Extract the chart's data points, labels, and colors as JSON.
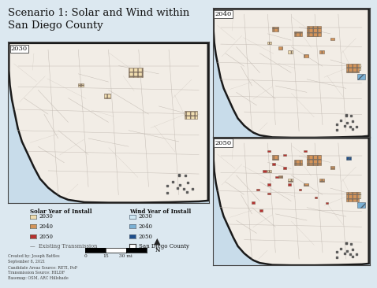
{
  "title": "Scenario 1: Solar and Wind within\nSan Diego County",
  "title_fontsize": 9.5,
  "background_color": "#dce8f0",
  "map_bg": "#c8dcea",
  "land_color": "#f2ede6",
  "land_color_light": "#e8e4dc",
  "county_border": "#1a1a1a",
  "road_color": "#c0b8a8",
  "map_labels": [
    "2030",
    "2040",
    "2050"
  ],
  "legend": {
    "solar_title": "Solar Year of Install",
    "wind_title": "Wind Year of Install",
    "solar_items": [
      {
        "label": "2030",
        "color": "#f0ddb0"
      },
      {
        "label": "2040",
        "color": "#d4945a"
      },
      {
        "label": "2050",
        "color": "#b83030"
      }
    ],
    "wind_items": [
      {
        "label": "2030",
        "color": "#d0e8f4"
      },
      {
        "label": "2040",
        "color": "#7ab0d4"
      },
      {
        "label": "2050",
        "color": "#1e4e8c"
      }
    ],
    "transmission_color": "#888888",
    "county_fill": "#ffffff",
    "county_border": "#333333"
  },
  "credits": "Created by: Joseph Battles\nSeptember 8, 2021\nCandidate Areas Source: RETI, PoP\nTransmission Source: HILDF\nBasemap: OSM, ARC Hillshade",
  "scale_labels": [
    "0",
    "15",
    "30 mi"
  ],
  "font_family": "DejaVu Serif"
}
